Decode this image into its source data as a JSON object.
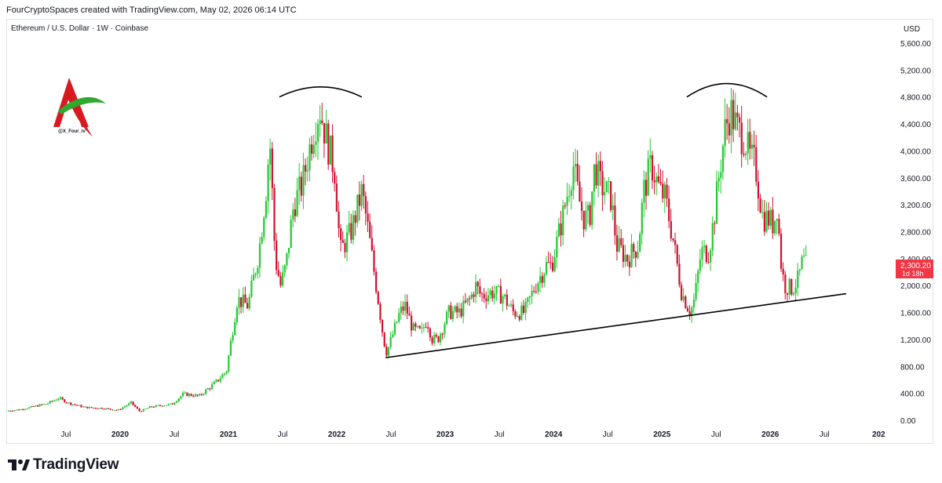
{
  "header": {
    "attribution": "FourCryptoSpaces created with TradingView.com, May 02, 2026 06:14 UTC"
  },
  "brand": {
    "name": "TradingView",
    "watermark_handle": "@X_Four_iv"
  },
  "colors": {
    "up": "#22c932",
    "down": "#d0102e",
    "price_badge": "#f23645",
    "axis_text": "#131722"
  },
  "chart_data": {
    "type": "candlestick",
    "title": "Ethereum / U.S. Dollar · 1W · Coinbase",
    "currency": "USD",
    "last_price": "2,300.20",
    "countdown": "1d 18h",
    "ylim": [
      0,
      5800
    ],
    "y_ticks": [
      "0.00",
      "400.00",
      "800.00",
      "1,200.00",
      "1,600.00",
      "2,000.00",
      "2,400.00",
      "2,800.00",
      "3,200.00",
      "3,600.00",
      "4,000.00",
      "4,400.00",
      "4,800.00",
      "5,200.00",
      "5,600.00"
    ],
    "y_tick_values": [
      0,
      400,
      800,
      1200,
      1600,
      2000,
      2400,
      2800,
      3200,
      3600,
      4000,
      4400,
      4800,
      5200,
      5600
    ],
    "x_ticks": [
      {
        "label": "Jul",
        "t": 2019.5,
        "bold": false
      },
      {
        "label": "2020",
        "t": 2020.0,
        "bold": true
      },
      {
        "label": "Jul",
        "t": 2020.5,
        "bold": false
      },
      {
        "label": "2021",
        "t": 2021.0,
        "bold": true
      },
      {
        "label": "Jul",
        "t": 2021.5,
        "bold": false
      },
      {
        "label": "2022",
        "t": 2022.0,
        "bold": true
      },
      {
        "label": "Jul",
        "t": 2022.5,
        "bold": false
      },
      {
        "label": "2023",
        "t": 2023.0,
        "bold": true
      },
      {
        "label": "Jul",
        "t": 2023.5,
        "bold": false
      },
      {
        "label": "2024",
        "t": 2024.0,
        "bold": true
      },
      {
        "label": "Jul",
        "t": 2024.5,
        "bold": false
      },
      {
        "label": "2025",
        "t": 2025.0,
        "bold": true
      },
      {
        "label": "Jul",
        "t": 2025.5,
        "bold": false
      },
      {
        "label": "2026",
        "t": 2026.0,
        "bold": true
      },
      {
        "label": "Jul",
        "t": 2026.5,
        "bold": false
      },
      {
        "label": "202",
        "t": 2027.0,
        "bold": true
      }
    ],
    "price_path": [
      [
        2018.97,
        140
      ],
      [
        2019.1,
        160
      ],
      [
        2019.35,
        250
      ],
      [
        2019.45,
        330
      ],
      [
        2019.55,
        250
      ],
      [
        2019.7,
        190
      ],
      [
        2019.85,
        180
      ],
      [
        2020.0,
        150
      ],
      [
        2020.12,
        260
      ],
      [
        2020.2,
        130
      ],
      [
        2020.3,
        200
      ],
      [
        2020.5,
        240
      ],
      [
        2020.6,
        390
      ],
      [
        2020.75,
        360
      ],
      [
        2020.9,
        560
      ],
      [
        2021.0,
        730
      ],
      [
        2021.1,
        1800
      ],
      [
        2021.2,
        1700
      ],
      [
        2021.3,
        2500
      ],
      [
        2021.37,
        3500
      ],
      [
        2021.4,
        4200
      ],
      [
        2021.45,
        2400
      ],
      [
        2021.5,
        2000
      ],
      [
        2021.55,
        2300
      ],
      [
        2021.62,
        3200
      ],
      [
        2021.7,
        3500
      ],
      [
        2021.8,
        4300
      ],
      [
        2021.86,
        4650
      ],
      [
        2021.92,
        4200
      ],
      [
        2022.0,
        3700
      ],
      [
        2022.05,
        2500
      ],
      [
        2022.15,
        2800
      ],
      [
        2022.25,
        3400
      ],
      [
        2022.3,
        2900
      ],
      [
        2022.4,
        1800
      ],
      [
        2022.45,
        1200
      ],
      [
        2022.48,
        1000
      ],
      [
        2022.5,
        1100
      ],
      [
        2022.6,
        1600
      ],
      [
        2022.65,
        1700
      ],
      [
        2022.72,
        1350
      ],
      [
        2022.8,
        1300
      ],
      [
        2022.85,
        1500
      ],
      [
        2022.9,
        1200
      ],
      [
        2022.95,
        1200
      ],
      [
        2023.05,
        1600
      ],
      [
        2023.15,
        1600
      ],
      [
        2023.25,
        1800
      ],
      [
        2023.3,
        2000
      ],
      [
        2023.35,
        1850
      ],
      [
        2023.45,
        1900
      ],
      [
        2023.55,
        1850
      ],
      [
        2023.65,
        1600
      ],
      [
        2023.75,
        1600
      ],
      [
        2023.85,
        2000
      ],
      [
        2023.95,
        2300
      ],
      [
        2024.0,
        2300
      ],
      [
        2024.1,
        3000
      ],
      [
        2024.2,
        3800
      ],
      [
        2024.25,
        3300
      ],
      [
        2024.3,
        3000
      ],
      [
        2024.35,
        3000
      ],
      [
        2024.4,
        3800
      ],
      [
        2024.45,
        3500
      ],
      [
        2024.55,
        3300
      ],
      [
        2024.6,
        2600
      ],
      [
        2024.7,
        2400
      ],
      [
        2024.8,
        2600
      ],
      [
        2024.85,
        3400
      ],
      [
        2024.92,
        3800
      ],
      [
        2025.0,
        3400
      ],
      [
        2025.05,
        3300
      ],
      [
        2025.12,
        2700
      ],
      [
        2025.2,
        1900
      ],
      [
        2025.28,
        1600
      ],
      [
        2025.32,
        1800
      ],
      [
        2025.38,
        2500
      ],
      [
        2025.45,
        2500
      ],
      [
        2025.5,
        3000
      ],
      [
        2025.55,
        3700
      ],
      [
        2025.6,
        4300
      ],
      [
        2025.65,
        4600
      ],
      [
        2025.72,
        4300
      ],
      [
        2025.78,
        4200
      ],
      [
        2025.83,
        3900
      ],
      [
        2025.88,
        3800
      ],
      [
        2025.95,
        3000
      ],
      [
        2026.0,
        3000
      ],
      [
        2026.05,
        2900
      ],
      [
        2026.08,
        3200
      ],
      [
        2026.12,
        2300
      ],
      [
        2026.15,
        2000
      ],
      [
        2026.22,
        1950
      ],
      [
        2026.28,
        2100
      ],
      [
        2026.32,
        2400
      ],
      [
        2026.34,
        2300
      ]
    ],
    "trendline": [
      [
        2022.45,
        930
      ],
      [
        2026.7,
        1880
      ]
    ],
    "arcs": [
      {
        "center_t": 2021.85,
        "half_width_t": 0.38,
        "base": 4800,
        "top": 4950
      },
      {
        "center_t": 2025.6,
        "half_width_t": 0.37,
        "base": 4800,
        "top": 5000
      }
    ]
  }
}
